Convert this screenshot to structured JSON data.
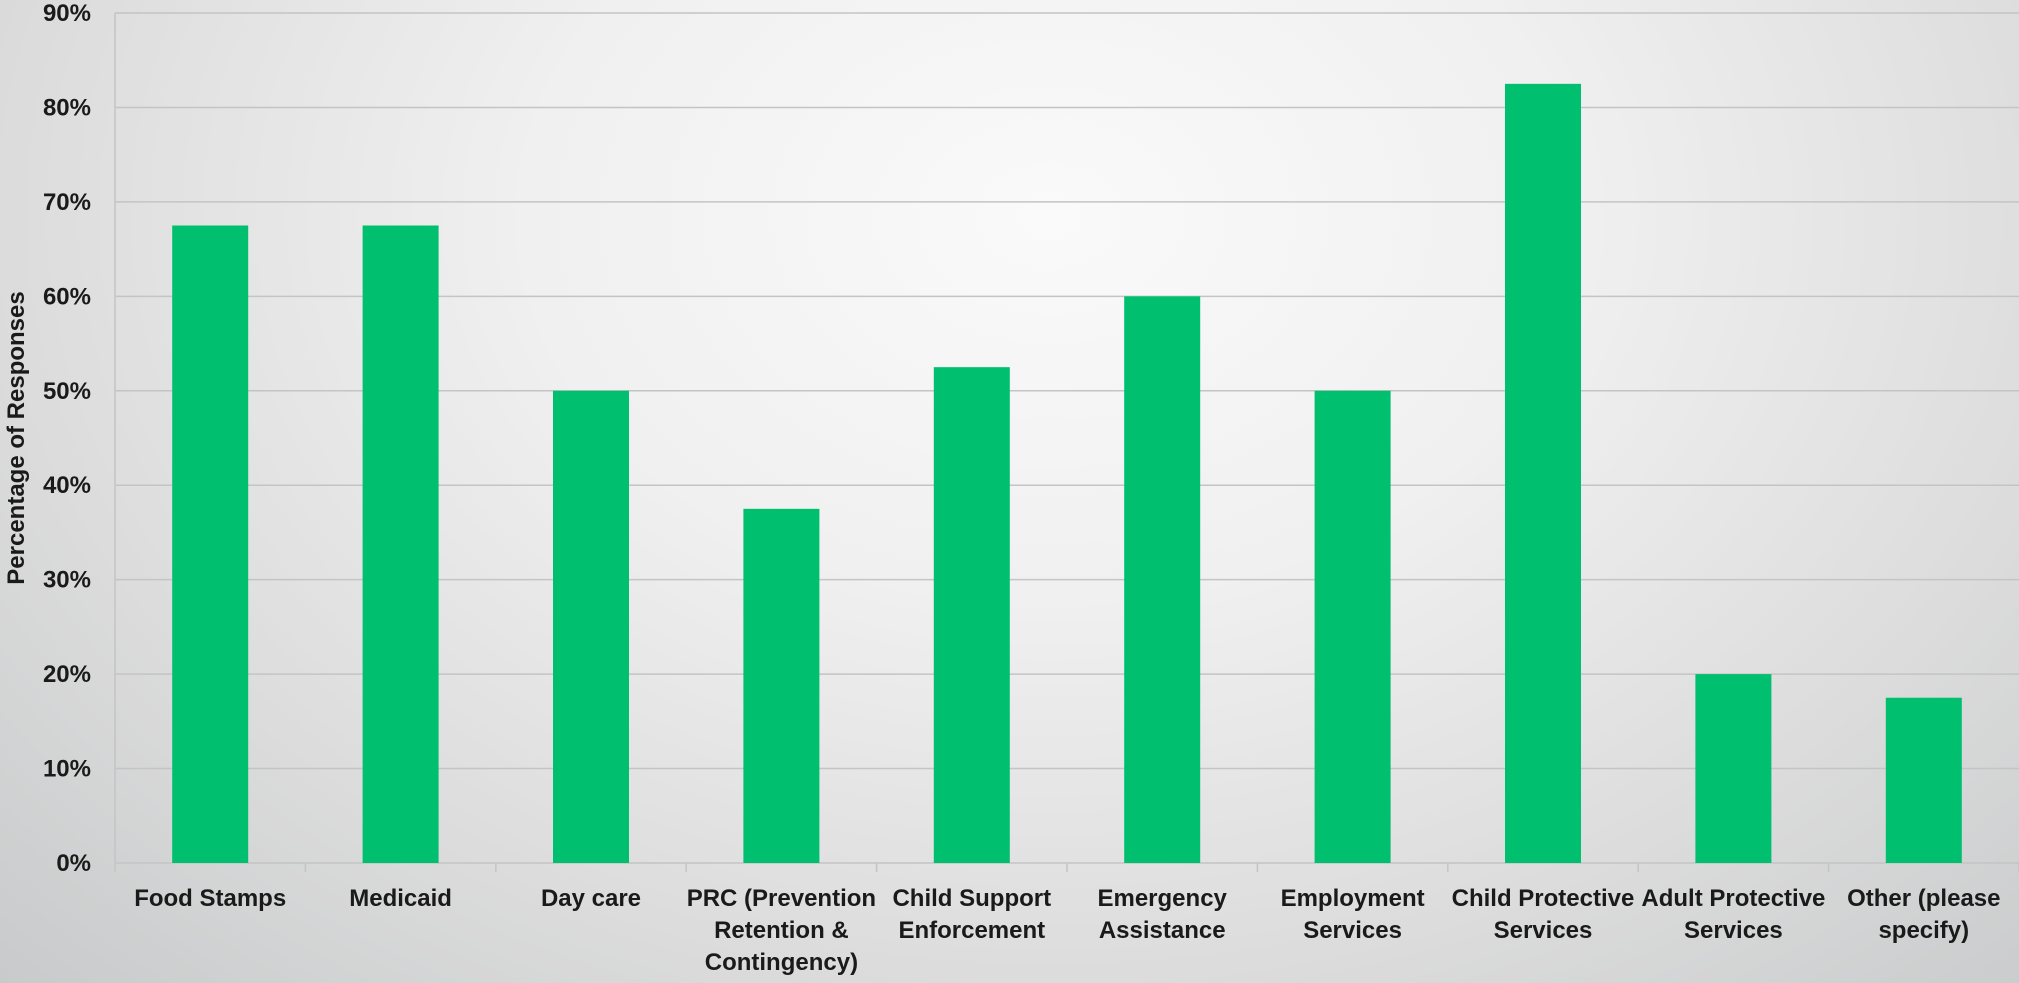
{
  "chart_data": {
    "type": "bar",
    "title": "",
    "xlabel": "",
    "ylabel": "Percentage of Responses",
    "ylim": [
      0,
      90
    ],
    "y_unit": "%",
    "y_ticks": [
      0,
      10,
      20,
      30,
      40,
      50,
      60,
      70,
      80,
      90
    ],
    "y_tick_labels": [
      "0%",
      "10%",
      "20%",
      "30%",
      "40%",
      "50%",
      "60%",
      "70%",
      "80%",
      "90%"
    ],
    "grid": true,
    "legend": "none",
    "bar_color": "#00bf6f",
    "categories": [
      "Food Stamps",
      "Medicaid",
      "Day care",
      "PRC (Prevention Retention & Contingency)",
      "Child Support Enforcement",
      "Emergency Assistance",
      "Employment Services",
      "Child Protective Services",
      "Adult Protective Services",
      "Other (please specify)"
    ],
    "category_label_lines": [
      [
        "Food Stamps"
      ],
      [
        "Medicaid"
      ],
      [
        "Day care"
      ],
      [
        "PRC (Prevention",
        "Retention &",
        "Contingency)"
      ],
      [
        "Child Support",
        "Enforcement"
      ],
      [
        "Emergency",
        "Assistance"
      ],
      [
        "Employment",
        "Services"
      ],
      [
        "Child Protective",
        "Services"
      ],
      [
        "Adult Protective",
        "Services"
      ],
      [
        "Other (please",
        "specify)"
      ]
    ],
    "values": [
      67.5,
      67.5,
      50,
      37.5,
      52.5,
      60,
      50,
      82.5,
      20,
      17.5
    ]
  }
}
